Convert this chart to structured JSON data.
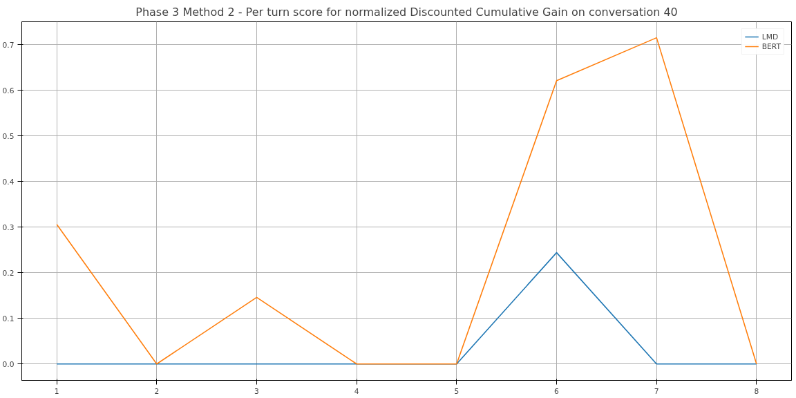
{
  "chart_data": {
    "type": "line",
    "title": "Phase 3 Method 2 - Per turn score for normalized Discounted Cumulative Gain on conversation 40",
    "x": [
      1,
      2,
      3,
      4,
      5,
      6,
      7,
      8
    ],
    "series": [
      {
        "name": "LMD",
        "color": "#1f77b4",
        "values": [
          0,
          0,
          0,
          0,
          0,
          0.244,
          0,
          0
        ]
      },
      {
        "name": "BERT",
        "color": "#ff7f0e",
        "values": [
          0.306,
          0,
          0.146,
          0,
          0,
          0.621,
          0.715,
          0
        ]
      }
    ],
    "xlim": [
      0.65,
      8.35
    ],
    "ylim": [
      -0.036,
      0.75
    ],
    "xticks": [
      1,
      2,
      3,
      4,
      5,
      6,
      7,
      8
    ],
    "yticks": [
      {
        "value": 0,
        "label": "0.0"
      },
      {
        "value": 0.1,
        "label": "0.1"
      },
      {
        "value": 0.2,
        "label": "0.2"
      },
      {
        "value": 0.3,
        "label": "0.3"
      },
      {
        "value": 0.4,
        "label": "0.4"
      },
      {
        "value": 0.5,
        "label": "0.5"
      },
      {
        "value": 0.6,
        "label": "0.6"
      },
      {
        "value": 0.7,
        "label": "0.7"
      }
    ],
    "grid": true,
    "legend": "top right",
    "line_style": "solid"
  }
}
